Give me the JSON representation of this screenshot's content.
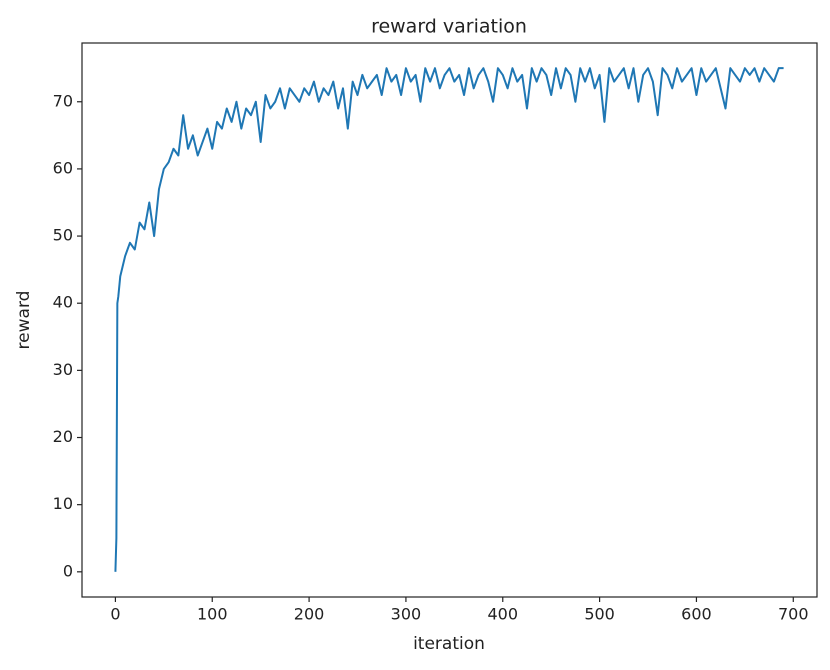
{
  "chart_data": {
    "type": "line",
    "title": "reward variation",
    "x_label": "iteration",
    "y_label": "reward",
    "color": "#1f77b4",
    "x": [
      0,
      1,
      2,
      3,
      5,
      10,
      15,
      20,
      25,
      30,
      35,
      40,
      45,
      50,
      55,
      60,
      65,
      70,
      75,
      80,
      85,
      90,
      95,
      100,
      105,
      110,
      115,
      120,
      125,
      130,
      135,
      140,
      145,
      150,
      155,
      160,
      165,
      170,
      175,
      180,
      185,
      190,
      195,
      200,
      205,
      210,
      215,
      220,
      225,
      230,
      235,
      240,
      245,
      250,
      255,
      260,
      265,
      270,
      275,
      280,
      285,
      290,
      295,
      300,
      305,
      310,
      315,
      320,
      325,
      330,
      335,
      340,
      345,
      350,
      355,
      360,
      365,
      370,
      375,
      380,
      385,
      390,
      395,
      400,
      405,
      410,
      415,
      420,
      425,
      430,
      435,
      440,
      445,
      450,
      455,
      460,
      465,
      470,
      475,
      480,
      485,
      490,
      495,
      500,
      505,
      510,
      515,
      520,
      525,
      530,
      535,
      540,
      545,
      550,
      555,
      560,
      565,
      570,
      575,
      580,
      585,
      590,
      595,
      600,
      605,
      610,
      615,
      620,
      625,
      630,
      635,
      640,
      645,
      650,
      655,
      660,
      665,
      670,
      675,
      680,
      685,
      690
    ],
    "values": [
      0,
      5,
      40,
      41,
      44,
      47,
      49,
      48,
      52,
      51,
      55,
      50,
      57,
      60,
      61,
      63,
      62,
      68,
      63,
      65,
      62,
      64,
      66,
      63,
      67,
      66,
      69,
      67,
      70,
      66,
      69,
      68,
      70,
      64,
      71,
      69,
      70,
      72,
      69,
      72,
      71,
      70,
      72,
      71,
      73,
      70,
      72,
      71,
      73,
      69,
      72,
      66,
      73,
      71,
      74,
      72,
      73,
      74,
      71,
      75,
      73,
      74,
      71,
      75,
      73,
      74,
      70,
      75,
      73,
      75,
      72,
      74,
      75,
      73,
      74,
      71,
      75,
      72,
      74,
      75,
      73,
      70,
      75,
      74,
      72,
      75,
      73,
      74,
      69,
      75,
      73,
      75,
      74,
      71,
      75,
      72,
      75,
      74,
      70,
      75,
      73,
      75,
      72,
      74,
      67,
      75,
      73,
      74,
      75,
      72,
      75,
      70,
      74,
      75,
      73,
      68,
      75,
      74,
      72,
      75,
      73,
      74,
      75,
      71,
      75,
      73,
      74,
      75,
      72,
      69,
      75,
      74,
      73,
      75,
      74,
      75,
      73,
      75,
      74,
      73,
      75,
      75
    ],
    "xlim": [
      -34.5,
      724.5
    ],
    "ylim": [
      -3.75,
      78.75
    ],
    "xticks": [
      0,
      100,
      200,
      300,
      400,
      500,
      600,
      700
    ],
    "yticks": [
      0,
      10,
      20,
      30,
      40,
      50,
      60,
      70
    ]
  }
}
